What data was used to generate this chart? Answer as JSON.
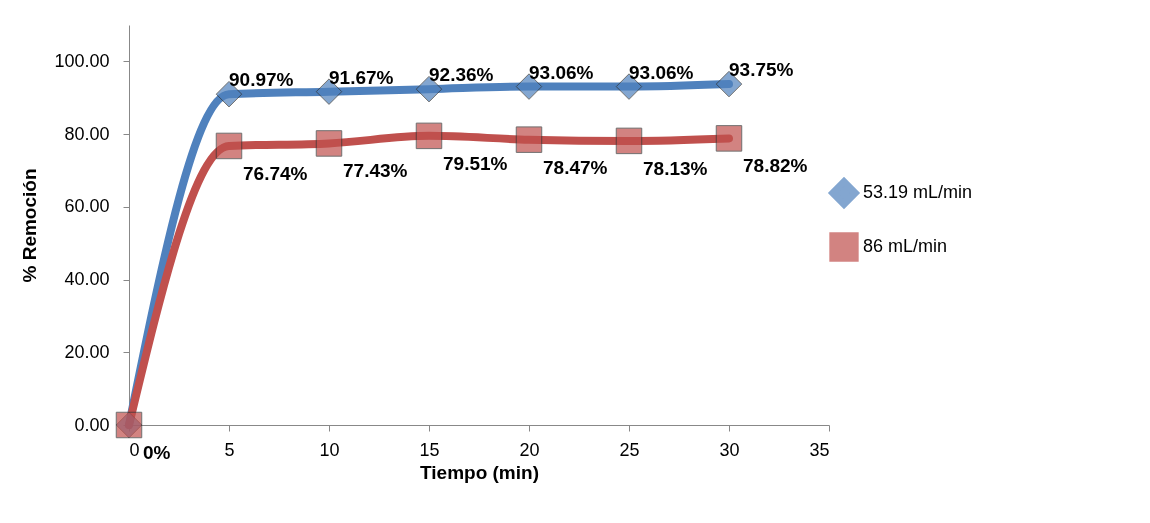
{
  "chart_data": {
    "type": "line",
    "xlabel": "Tiempo (min)",
    "ylabel": "% Remoción",
    "x": [
      0,
      5,
      10,
      15,
      20,
      25,
      30
    ],
    "series": [
      {
        "name": "53.19 mL/min",
        "color": "#4f81bd",
        "marker": "diamond",
        "values": [
          0,
          90.97,
          91.67,
          92.36,
          93.06,
          93.06,
          93.75
        ],
        "value_labels": [
          null,
          "90.97%",
          "91.67%",
          "92.36%",
          "93.06%",
          "93.06%",
          "93.75%"
        ]
      },
      {
        "name": "86 mL/min",
        "color": "#c0504d",
        "marker": "square",
        "values": [
          0,
          76.74,
          77.43,
          79.51,
          78.47,
          78.13,
          78.82
        ],
        "value_labels": [
          "0%",
          "76.74%",
          "77.43%",
          "79.51%",
          "78.47%",
          "78.13%",
          "78.82%"
        ]
      }
    ],
    "xlim": [
      0,
      35
    ],
    "xticks": [
      0,
      5,
      10,
      15,
      20,
      25,
      30,
      35
    ],
    "ylim": [
      0,
      110
    ],
    "yticks": [
      {
        "value": 0,
        "label": "0.00"
      },
      {
        "value": 20,
        "label": "20.00"
      },
      {
        "value": 40,
        "label": "40.00"
      },
      {
        "value": 60,
        "label": "60.00"
      },
      {
        "value": 80,
        "label": "80.00"
      },
      {
        "value": 100,
        "label": "100.00"
      }
    ],
    "grid": false,
    "legend": "right",
    "line_style": "solid"
  }
}
